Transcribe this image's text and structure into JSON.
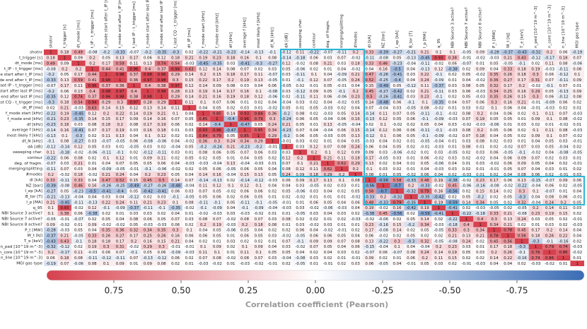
{
  "chart_data": {
    "type": "heatmap",
    "labels": [
      "shotnr",
      "t_trigger [s]",
      "dt_mode [ms]",
      "t_IP - t_trigger [ms]",
      "t_mode start after t_IP [ms]",
      "t_mode end after t_IP [ms]",
      "t_last IP - t_trigger [ms]",
      "t_mode start after last IP [ms]",
      "t_mode end after last IP [ms]",
      "t_last CQ - t_trigger [ms]",
      "dt_IP [ms]",
      "f_mode start [kHz]",
      "f_mode end [kHz]",
      "df [kHz]",
      "average f [kHz]",
      "most likely f [kHz]",
      "df_N [kHz]",
      "dA [dB]",
      "sweeping char.",
      "contour",
      "deg. of fragm.",
      "merging/splitting",
      "#modes",
      "dI [kA]",
      "NZ [bar]",
      "I_ep [kA]",
      "B_tor [T]",
      "I_p [MA]",
      "q_95",
      "NBI Source 3 active?",
      "NBI Source 7 active?",
      "NBI Source 8 active?",
      "P_t [MW]",
      "W_t [kJ]",
      "T_e [keV]",
      "n_ped [10^19 m^-3]",
      "n_core [10^19 m^-3]",
      "n_line [10^19 m^-3]",
      "MGI gas type"
    ],
    "matrix": [
      [
        1,
        0.18,
        0.49,
        -0.08,
        -0.2,
        -0.33,
        -0.07,
        -0.2,
        -0.35,
        -0.3,
        0.02,
        -0.22,
        -0.21,
        -0.23,
        -0.14,
        -0.13,
        -0.1,
        -0.12,
        0.11,
        -0.22,
        -0.07,
        -0.11,
        0.2,
        0.33,
        -0.39,
        -0.27,
        -0.21,
        0.21,
        0.1,
        0.1,
        -0.05,
        0.09,
        -0.28,
        -0.37,
        -0.43,
        -0.32,
        0.2,
        0.06,
        -0.19
      ],
      [
        1,
        0.09,
        0.2,
        0.05,
        0.13,
        0.17,
        0.06,
        0.12,
        0.18,
        0.21,
        0.19,
        0.23,
        0.18,
        0.16,
        0.1,
        0.08,
        -0.14,
        -0.18,
        0.06,
        0.03,
        0.07,
        -0.02,
        -0.11,
        -0.08,
        0.05,
        -0.13,
        -0.45,
        0.93,
        0.38,
        -0.01,
        -0.02,
        -0.03,
        0.21,
        0.43,
        -0.12,
        -0.17,
        0.18,
        0.07
      ],
      [
        1,
        0.2,
        0.17,
        0.59,
        0.11,
        0.13,
        0.74,
        0.54,
        -0.03,
        -0.45,
        -0.35,
        0.03,
        -0.41,
        -0.3,
        -0.27,
        0.12,
        -0.02,
        0.08,
        0.21,
        0.03,
        0.18,
        0.33,
        0.46,
        -0.23,
        -0.04,
        -0.11,
        -0.02,
        0.06,
        -0.07,
        0.01,
        0.05,
        -0.05,
        -0.1,
        0.02,
        0.11,
        0.08,
        -0.06
      ],
      [
        1,
        0.44,
        0.41,
        0.96,
        0.4,
        0.37,
        0.94,
        0.63,
        0.12,
        0.14,
        0.08,
        0.07,
        0.02,
        0.03,
        0.05,
        -0.06,
        0.02,
        0.01,
        0.04,
        -0.02,
        0.04,
        0.16,
        -0.5,
        0.04,
        -0.13,
        0.12,
        -0.38,
        0.02,
        0.09,
        0.04,
        0.33,
        0.18,
        0.19,
        -0.03,
        -0.11,
        0.08
      ],
      [
        1,
        0.98,
        0.37,
        0.98,
        0.96,
        0.29,
        0.14,
        0.2,
        0.15,
        0.18,
        0.17,
        0.11,
        -0.07,
        0.03,
        -0.11,
        0.1,
        0.04,
        -0.09,
        0.21,
        0.47,
        -0.26,
        -0.41,
        0.03,
        0.22,
        -0.1,
        0.02,
        0.05,
        -0.02,
        0.35,
        0.26,
        0.18,
        0.3,
        0.06,
        -0.12,
        0.1
      ],
      [
        1,
        0.36,
        0.97,
        0.98,
        0.3,
        0.15,
        0.22,
        0.17,
        0.2,
        0.19,
        0.13,
        -0.05,
        0.01,
        -0.1,
        0.12,
        0.07,
        -0.05,
        0.24,
        0.52,
        -0.25,
        -0.4,
        0.04,
        0.24,
        -0.09,
        0.01,
        0.04,
        -0.02,
        0.36,
        0.27,
        0.17,
        0.31,
        0.07,
        -0.11,
        0.09
      ],
      [
        1,
        0.4,
        0.38,
        0.97,
        0.12,
        0.14,
        0.09,
        0.08,
        0.03,
        0.04,
        0.06,
        -0.05,
        0.02,
        0.01,
        0.05,
        -0.01,
        0.04,
        0.15,
        -0.49,
        0.05,
        -0.12,
        0.11,
        -0.37,
        0.03,
        0.08,
        0.05,
        0.32,
        0.17,
        0.2,
        -0.02,
        -0.1,
        0.07,
        0.01
      ],
      [
        1,
        0.98,
        0.28,
        0.13,
        0.19,
        0.14,
        0.17,
        0.16,
        0.1,
        -0.08,
        0.03,
        -0.12,
        0.09,
        0.05,
        -0.1,
        0.2,
        0.45,
        -0.27,
        -0.42,
        0.02,
        0.21,
        -0.11,
        0.03,
        0.06,
        -0.03,
        0.34,
        0.25,
        0.16,
        0.29,
        0.05,
        -0.13,
        0.09
      ],
      [
        1,
        0.29,
        0.14,
        0.21,
        0.16,
        0.19,
        0.18,
        0.12,
        -0.06,
        0.02,
        -0.11,
        0.11,
        0.06,
        -0.06,
        0.23,
        0.5,
        -0.26,
        -0.41,
        0.03,
        0.23,
        -0.1,
        0.02,
        0.05,
        -0.03,
        0.35,
        0.26,
        0.15,
        0.3,
        0.06,
        -0.12,
        0.08
      ],
      [
        1,
        0.11,
        0.1,
        0.07,
        0.06,
        0.01,
        0.02,
        0.04,
        -0.04,
        0.03,
        0.02,
        0.04,
        -0.02,
        0.05,
        0.14,
        -0.48,
        0.06,
        -0.1,
        0.1,
        -0.35,
        0.04,
        0.07,
        0.06,
        0.3,
        0.16,
        0.21,
        -0.01,
        -0.09,
        0.06,
        0.02
      ],
      [
        1,
        0.04,
        0.05,
        0.02,
        0.03,
        0.01,
        -0.02,
        0.05,
        0.01,
        0.05,
        -0.03,
        0.02,
        0.04,
        0.07,
        -0.04,
        0.03,
        -0.05,
        0.08,
        -0.02,
        0.01,
        0.03,
        0.02,
        0.1,
        0.06,
        0.04,
        -0.01,
        -0.03,
        0.02,
        0.01
      ],
      [
        1,
        0.85,
        0.14,
        0.93,
        0.84,
        0.36,
        -0.2,
        0.08,
        0.02,
        -0.03,
        0.05,
        0.14,
        -0.14,
        0.11,
        0.07,
        0.05,
        -0.11,
        -0.1,
        -0.02,
        0.08,
        0.2,
        0.04,
        0.06,
        0.02,
        0.1,
        0.11,
        0.07,
        -0.03
      ],
      [
        1,
        -0.4,
        0.96,
        0.79,
        0.3,
        -0.24,
        0.06,
        0.05,
        -0.04,
        0.06,
        0.16,
        -0.13,
        0.12,
        0.05,
        0.06,
        -0.1,
        -0.09,
        -0.03,
        0.07,
        0.19,
        0.05,
        0.05,
        0.01,
        0.09,
        0.1,
        0.08,
        -0.02
      ],
      [
        1,
        -0.47,
        0.05,
        0.24,
        0.21,
        0.05,
        0.01,
        0.13,
        -0.05,
        -0.04,
        0.02,
        0.1,
        -0.02,
        0.02,
        0.05,
        0.04,
        0.03,
        -0.02,
        -0.03,
        -0.06,
        0.01,
        0.03,
        0.02,
        0.01,
        -0.02,
        0.01
      ],
      [
        1,
        0.85,
        0.34,
        -0.23,
        0.07,
        0.04,
        -0.04,
        0.06,
        0.15,
        -0.14,
        0.12,
        0.06,
        0.06,
        -0.11,
        -0.1,
        -0.03,
        0.08,
        0.2,
        0.05,
        0.06,
        0.02,
        0.1,
        0.11,
        0.08,
        -0.03
      ],
      [
        1,
        0.29,
        -0.2,
        0.06,
        0.05,
        -0.03,
        0.05,
        0.13,
        -0.12,
        0.1,
        0.06,
        0.05,
        -0.1,
        -0.09,
        -0.02,
        0.07,
        0.18,
        0.04,
        0.05,
        0.02,
        0.09,
        0.1,
        0.07,
        -0.02
      ],
      [
        1,
        -0.01,
        0.03,
        0.02,
        0.01,
        0.04,
        0.05,
        -0.03,
        0.04,
        0.02,
        0.01,
        -0.05,
        -0.04,
        0.01,
        0.03,
        0.08,
        0.02,
        0.03,
        0.01,
        0.04,
        0.05,
        0.03,
        -0.01
      ],
      [
        1,
        0.03,
        0.12,
        0.07,
        0.08,
        0.24,
        0.06,
        0.04,
        0.05,
        0.02,
        -0.01,
        -0.03,
        0.01,
        0.08,
        0.01,
        0.02,
        -0.02,
        0.07,
        0.03,
        0.05,
        -0.04,
        0.02
      ],
      [
        1,
        0.2,
        0.1,
        0.12,
        0.09,
        0.09,
        0.03,
        -0.06,
        -0.02,
        0.01,
        0.03,
        -0.05,
        0.02,
        0.03,
        0.06,
        -0.05,
        -0.1,
        -0.02,
        0.04,
        -0.08,
        -0.05
      ],
      [
        1,
        0.21,
        0.11,
        0.18,
        0.17,
        -0.05,
        0.03,
        0.01,
        0.06,
        -0.02,
        0.03,
        0.02,
        -0.02,
        0.04,
        0.06,
        0.09,
        0.07,
        0.02,
        0.03,
        0.01
      ],
      [
        1,
        0.62,
        0.29,
        0.13,
        0.02,
        0.04,
        0.01,
        0.05,
        -0.06,
        0.04,
        0.01,
        0.03,
        -0.02,
        0.06,
        0.09,
        0.05,
        0.04,
        0.02,
        -0.01
      ],
      [
        1,
        0.2,
        0.1,
        0.03,
        0.02,
        0.01,
        0.04,
        -0.03,
        0.03,
        0.02,
        0.01,
        -0.01,
        0.05,
        0.07,
        0.04,
        0.03,
        0.01,
        0.02
      ],
      [
        1,
        0.08,
        0.01,
        0.05,
        -0.02,
        0.06,
        0.04,
        0.02,
        -0.03,
        0.01,
        0.02,
        0.04,
        0.08,
        0.06,
        0.02,
        -0.01,
        0.03
      ],
      [
        1,
        -0.56,
        0.58,
        -0.33,
        0.48,
        0.19,
        -0.38,
        -0.02,
        0.23,
        0.17,
        0.06,
        0.13,
        -0.15,
        -0.07,
        0.09,
        0.06
      ],
      [
        1,
        -0.7,
        0.2,
        -0.33,
        -0.02,
        0.45,
        -0.06,
        -0.16,
        -0.08,
        -0.02,
        -0.22,
        -0.04,
        0.06,
        0.02,
        -0.05
      ],
      [
        1,
        -0.32,
        0.79,
        0.16,
        -0.56,
        0.02,
        0.15,
        0.14,
        0.02,
        0.3,
        0.1,
        -0.07,
        0.01,
        0.04
      ],
      [
        1,
        -0.35,
        -0.42,
        0.02,
        0.05,
        -0.2,
        0.02,
        0.05,
        -0.3,
        0.04,
        0.08,
        0.06,
        -0.01
      ],
      [
        1,
        0.19,
        -0.59,
        0.14,
        0.34,
        0.05,
        0.02,
        0.32,
        -0.04,
        0.24,
        0.2,
        0.05
      ],
      [
        1,
        -0.41,
        0.02,
        -0.03,
        -0.05,
        0.02,
        -0.05,
        0.2,
        0.14,
        0.11,
        0.03
      ],
      [
        1,
        -0.22,
        -0.18,
        0.33,
        0.21,
        -0.08,
        0.23,
        0.19,
        0.15,
        0.02
      ],
      [
        1,
        0.4,
        0.3,
        0.13,
        0.24,
        0.03,
        0.05,
        0.02,
        -0.01
      ],
      [
        1,
        0.34,
        0.21,
        0.02,
        0.01,
        0.03,
        0.02,
        -0.03
      ],
      [
        1,
        0.78,
        0.45,
        0.17,
        0.2,
        0.14,
        0.04
      ],
      [
        1,
        0.56,
        0.18,
        0.26,
        0.22,
        0.04
      ],
      [
        1,
        -0.3,
        -0.1,
        -0.16,
        0.02
      ],
      [
        1,
        0.79,
        0.74,
        -0.03
      ],
      [
        1,
        0.86,
        -0.02
      ],
      [
        1,
        0.01
      ],
      [
        1
      ]
    ],
    "colors": {
      "positive": "#d7414e",
      "negative": "#3b6cb5",
      "zero": "#ffffff"
    },
    "clim": [
      1,
      -1
    ],
    "colorbar_ticks": [
      0.75,
      {
        "value": 0.5,
        "label": "0.50"
      },
      0.25,
      {
        "value": 0,
        "label": "0.00"
      },
      -0.25,
      {
        "value": -0.5,
        "label": "-0.50"
      },
      -0.75
    ],
    "colorbar_label": "Correlation coefficient (Pearson)"
  }
}
